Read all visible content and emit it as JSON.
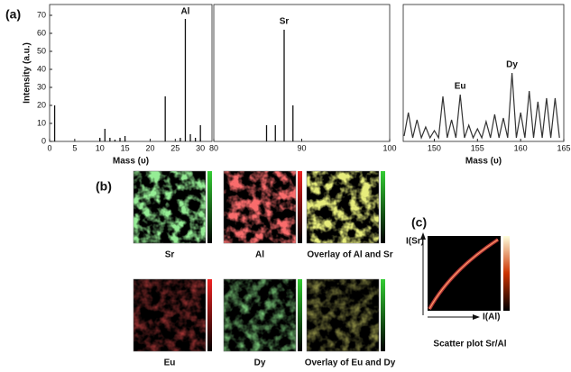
{
  "panel_labels": [
    "(a)",
    "(b)",
    "(c)"
  ],
  "chart_data": [
    {
      "type": "stem",
      "y_label": "Intensity (a.u.)",
      "x_label": "Mass (υ)",
      "color": "#111",
      "x": [
        1,
        10,
        11,
        12,
        13,
        14,
        15,
        23,
        26,
        27,
        28,
        29,
        30
      ],
      "values": [
        20,
        2,
        7,
        2,
        1,
        2,
        3,
        25,
        2,
        68,
        4,
        2,
        9
      ],
      "xlim": [
        0,
        32.3
      ],
      "xticks": [
        0,
        5,
        10,
        15,
        20,
        25,
        30
      ],
      "ylim": [
        0,
        76
      ],
      "yticks": [
        0,
        10,
        20,
        30,
        40,
        50,
        60,
        70
      ],
      "annotations": [
        {
          "text": "Al",
          "x": 27
        }
      ]
    },
    {
      "type": "stem",
      "color": "#111",
      "x": [
        86,
        87,
        88,
        89
      ],
      "values": [
        9,
        9,
        62,
        20
      ],
      "xlim": [
        80,
        100
      ],
      "xticks": [
        80,
        90,
        100
      ],
      "ylim": [
        0,
        76
      ],
      "annotations": [
        {
          "text": "Sr",
          "x": 88
        }
      ]
    },
    {
      "type": "line",
      "x_label": "Mass (υ)",
      "color": "#333",
      "x": [
        146.5,
        147,
        147.5,
        148,
        148.5,
        149,
        149.5,
        150,
        150.5,
        151,
        151.5,
        152,
        152.5,
        153,
        153.5,
        154,
        154.5,
        155,
        155.5,
        156,
        156.5,
        157,
        157.5,
        158,
        158.5,
        159,
        159.5,
        160,
        160.5,
        161,
        161.5,
        162,
        162.5,
        163,
        163.5,
        164,
        164.5
      ],
      "values": [
        3,
        16,
        2,
        12,
        2,
        8,
        2,
        6,
        2,
        25,
        2,
        12,
        2,
        26,
        2,
        9,
        2,
        7,
        2,
        11,
        2,
        15,
        2,
        13,
        2,
        38,
        2,
        16,
        2,
        28,
        2,
        22,
        2,
        24,
        2,
        24,
        2
      ],
      "xlim": [
        146.4,
        165
      ],
      "xticks": [
        150,
        155,
        160,
        165
      ],
      "ylim": [
        0,
        76
      ],
      "annotations": [
        {
          "text": "Eu",
          "x": 153
        },
        {
          "text": "Dy",
          "x": 159
        }
      ]
    }
  ],
  "maps": [
    {
      "label": "Sr"
    },
    {
      "label": "Al"
    },
    {
      "label": "Overlay of Al and Sr"
    },
    {
      "label": "Eu"
    },
    {
      "label": "Dy"
    },
    {
      "label": "Overlay of Eu and Dy"
    }
  ],
  "scatter": {
    "y_label": "I(Sr)",
    "x_label": "I(Al)",
    "caption": "Scatter plot Sr/Al"
  }
}
